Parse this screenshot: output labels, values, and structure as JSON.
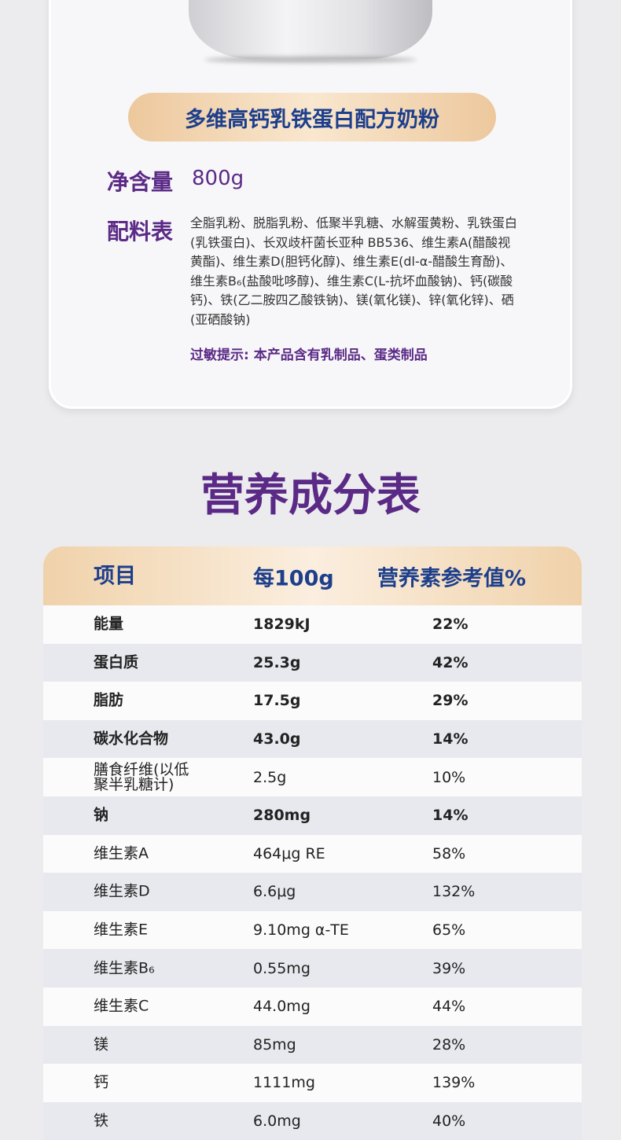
{
  "product": {
    "name": "多维高钙乳铁蛋白配方奶粉",
    "net_label": "净含量",
    "net_value": "800g",
    "ing_label": "配料表",
    "ingredients": "全脂乳粉、脱脂乳粉、低聚半乳糖、水解蛋黄粉、乳铁蛋白(乳铁蛋白)、长双歧杆菌长亚种 BB536、维生素A(醋酸视黄酯)、维生素D(胆钙化醇)、维生素E(dl-α-醋酸生育酚)、维生素B₆(盐酸吡哆醇)、维生素C(L-抗坏血酸钠)、钙(碳酸钙)、铁(乙二胺四乙酸铁钠)、镁(氧化镁)、锌(氧化锌)、硒(亚硒酸钠)",
    "allergy": "过敏提示: 本产品含有乳制品、蛋类制品"
  },
  "nutrition": {
    "title": "营养成分表",
    "headers": [
      "项目",
      "每100g",
      "营养素参考值%"
    ],
    "rows": [
      [
        "能量",
        "1829kJ",
        "22%",
        true
      ],
      [
        "蛋白质",
        "25.3g",
        "42%",
        true
      ],
      [
        "脂肪",
        "17.5g",
        "29%",
        true
      ],
      [
        "碳水化合物",
        "43.0g",
        "14%",
        true
      ],
      [
        "膳食纤维(以低聚半乳糖计)",
        "2.5g",
        "10%",
        false
      ],
      [
        "钠",
        "280mg",
        "14%",
        true
      ],
      [
        "维生素A",
        "464μg RE",
        "58%",
        false
      ],
      [
        "维生素D",
        "6.6μg",
        "132%",
        false
      ],
      [
        "维生素E",
        "9.10mg α-TE",
        "65%",
        false
      ],
      [
        "维生素B₆",
        "0.55mg",
        "39%",
        false
      ],
      [
        "维生素C",
        "44.0mg",
        "44%",
        false
      ],
      [
        "镁",
        "85mg",
        "28%",
        false
      ],
      [
        "钙",
        "1111mg",
        "139%",
        false
      ],
      [
        "铁",
        "6.0mg",
        "40%",
        false
      ]
    ]
  },
  "colors": {
    "purple": "#5b2a86",
    "blue": "#1d3f8c"
  }
}
